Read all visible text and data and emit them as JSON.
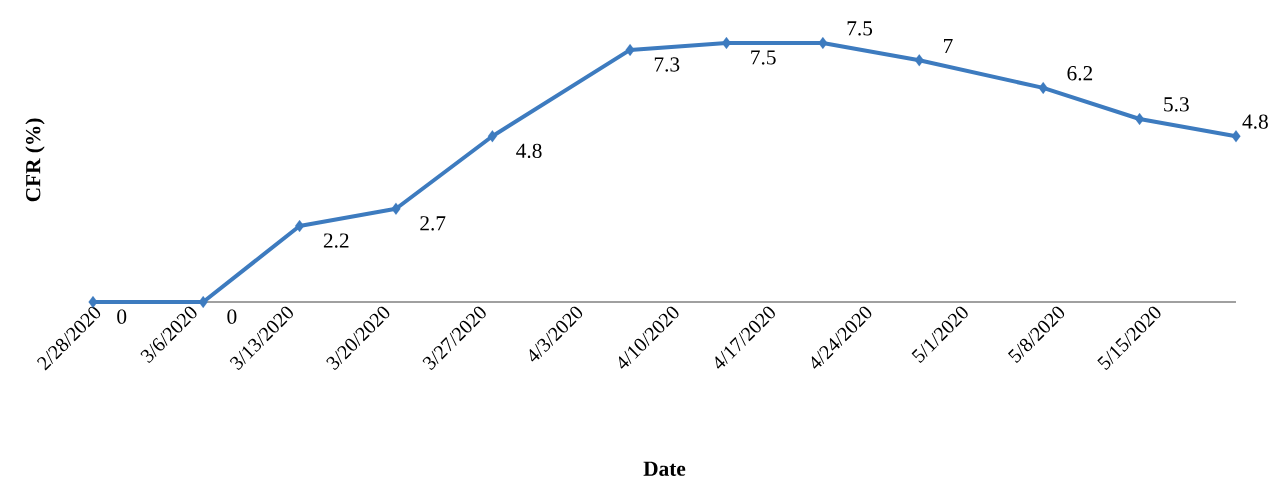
{
  "chart_data": {
    "type": "line",
    "xlabel": "Date",
    "ylabel": "CFR (%)",
    "x": [
      "2020-02-28",
      "2020-03-07",
      "2020-03-14",
      "2020-03-21",
      "2020-03-28",
      "2020-04-07",
      "2020-04-14",
      "2020-04-21",
      "2020-04-28",
      "2020-05-07",
      "2020-05-14",
      "2020-05-21"
    ],
    "values": [
      0,
      0,
      2.2,
      2.7,
      4.8,
      7.3,
      7.5,
      7.5,
      7,
      6.2,
      5.3,
      4.8
    ],
    "color": "#3d7bbf",
    "marker": "diamond",
    "data_labels": true,
    "tick_labels": "x",
    "grid": false,
    "xlim": [
      "2020-02-28",
      "2020-05-21"
    ],
    "xticks": [
      {
        "value": "2020-02-28",
        "label": "2/28/2020"
      },
      {
        "value": "2020-03-06",
        "label": "3/6/2020"
      },
      {
        "value": "2020-03-13",
        "label": "3/13/2020"
      },
      {
        "value": "2020-03-20",
        "label": "3/20/2020"
      },
      {
        "value": "2020-03-27",
        "label": "3/27/2020"
      },
      {
        "value": "2020-04-03",
        "label": "4/3/2020"
      },
      {
        "value": "2020-04-10",
        "label": "4/10/2020"
      },
      {
        "value": "2020-04-17",
        "label": "4/17/2020"
      },
      {
        "value": "2020-04-24",
        "label": "4/24/2020"
      },
      {
        "value": "2020-05-01",
        "label": "5/1/2020"
      },
      {
        "value": "2020-05-08",
        "label": "5/8/2020"
      },
      {
        "value": "2020-05-15",
        "label": "5/15/2020"
      }
    ]
  }
}
